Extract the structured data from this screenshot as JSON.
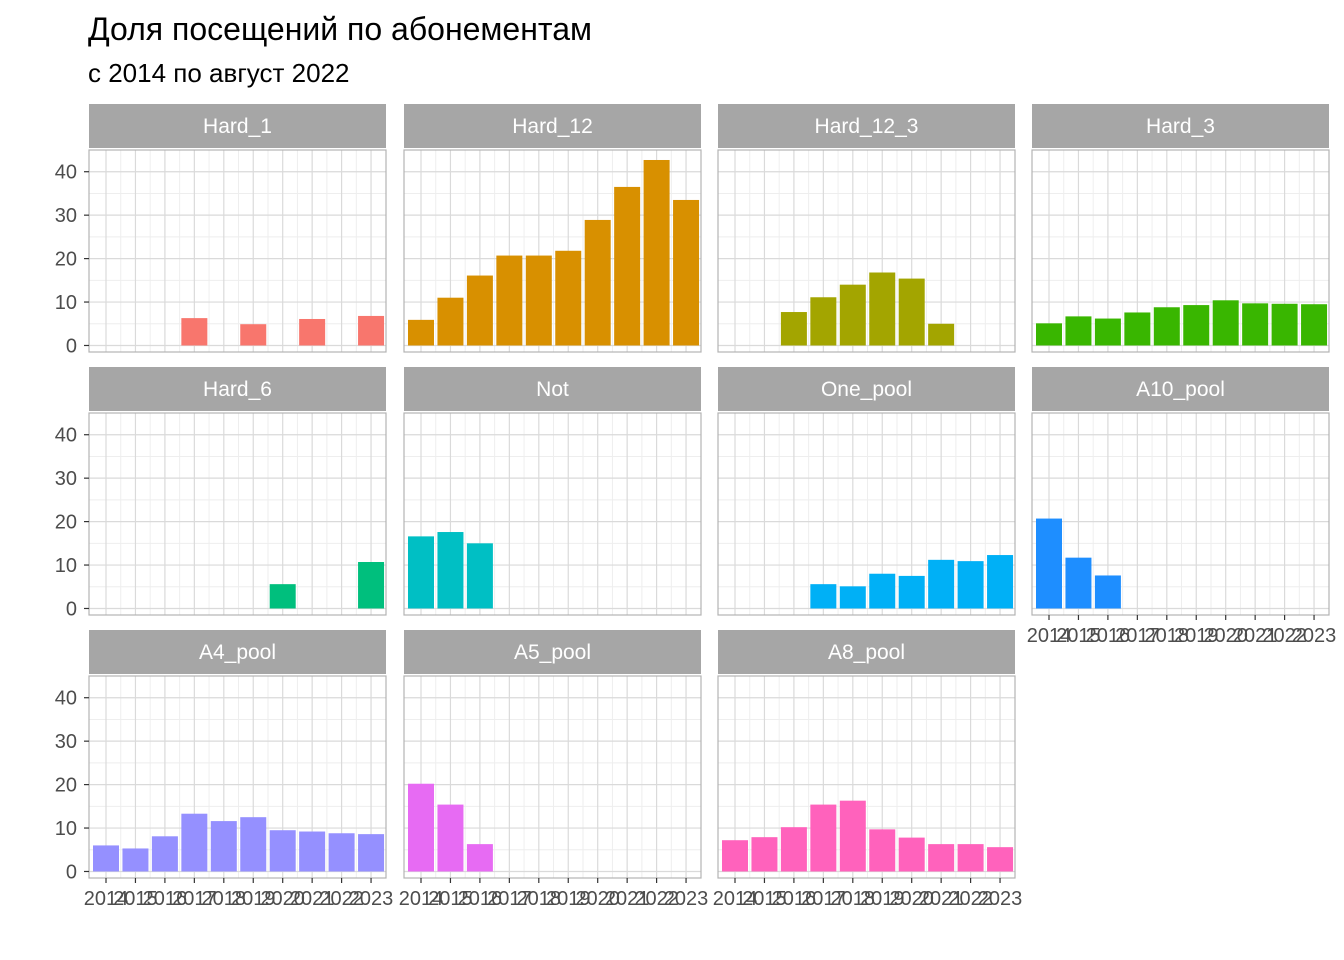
{
  "chart_data": {
    "type": "bar",
    "title": "Доля посещений по абонементам",
    "subtitle": "с 2014 по август 2022",
    "xlabel": "",
    "ylabel": "",
    "x_ticks": [
      "2014",
      "2015",
      "2016",
      "2017",
      "2018",
      "2019",
      "2020",
      "2021",
      "2022",
      "2023"
    ],
    "y_ticks": [
      0,
      10,
      20,
      30,
      40
    ],
    "ylim": [
      -1.5,
      45
    ],
    "grid": true,
    "legend": "none",
    "facets": [
      {
        "name": "Hard_1",
        "color": "#F8766D",
        "values": [
          null,
          null,
          null,
          6.3,
          null,
          4.9,
          null,
          6.1,
          null,
          6.8
        ]
      },
      {
        "name": "Hard_12",
        "color": "#D89000",
        "values": [
          5.9,
          11.0,
          16.1,
          20.7,
          20.7,
          21.8,
          28.9,
          36.5,
          42.7,
          33.5
        ]
      },
      {
        "name": "Hard_12_3",
        "color": "#A3A500",
        "values": [
          null,
          null,
          7.7,
          11.1,
          14.0,
          16.8,
          15.4,
          5.0,
          null,
          null
        ]
      },
      {
        "name": "Hard_3",
        "color": "#39B600",
        "values": [
          5.1,
          6.7,
          6.2,
          7.6,
          8.8,
          9.3,
          10.4,
          9.7,
          9.6,
          9.5
        ]
      },
      {
        "name": "Hard_6",
        "color": "#00BF7D",
        "values": [
          null,
          null,
          null,
          null,
          null,
          null,
          5.6,
          null,
          null,
          10.7
        ]
      },
      {
        "name": "Not",
        "color": "#00BFC4",
        "values": [
          16.6,
          17.6,
          15.0,
          null,
          null,
          null,
          null,
          null,
          null,
          null
        ]
      },
      {
        "name": "One_pool",
        "color": "#00B0F6",
        "values": [
          null,
          null,
          null,
          5.6,
          5.1,
          8.0,
          7.5,
          11.2,
          10.9,
          12.3
        ]
      },
      {
        "name": "A10_pool",
        "color": "#1E8EFF",
        "values": [
          20.7,
          11.7,
          7.6,
          null,
          null,
          null,
          null,
          null,
          null,
          null
        ]
      },
      {
        "name": "A4_pool",
        "color": "#9590FF",
        "values": [
          6.0,
          5.3,
          8.1,
          13.3,
          11.6,
          12.5,
          9.5,
          9.2,
          8.8,
          8.6
        ]
      },
      {
        "name": "A5_pool",
        "color": "#E76BF3",
        "values": [
          20.2,
          15.4,
          6.3,
          null,
          null,
          null,
          null,
          null,
          null,
          null
        ]
      },
      {
        "name": "A8_pool",
        "color": "#FF62BC",
        "values": [
          7.2,
          7.9,
          10.2,
          15.4,
          16.3,
          9.7,
          7.8,
          6.3,
          6.3,
          5.6
        ]
      }
    ]
  },
  "colors": {
    "strip_background": "#A6A6A6",
    "panel_border": "#B3B3B3",
    "grid_major": "#DADADA",
    "grid_minor": "#EEEEEE",
    "axis_text": "#4D4D4D"
  }
}
